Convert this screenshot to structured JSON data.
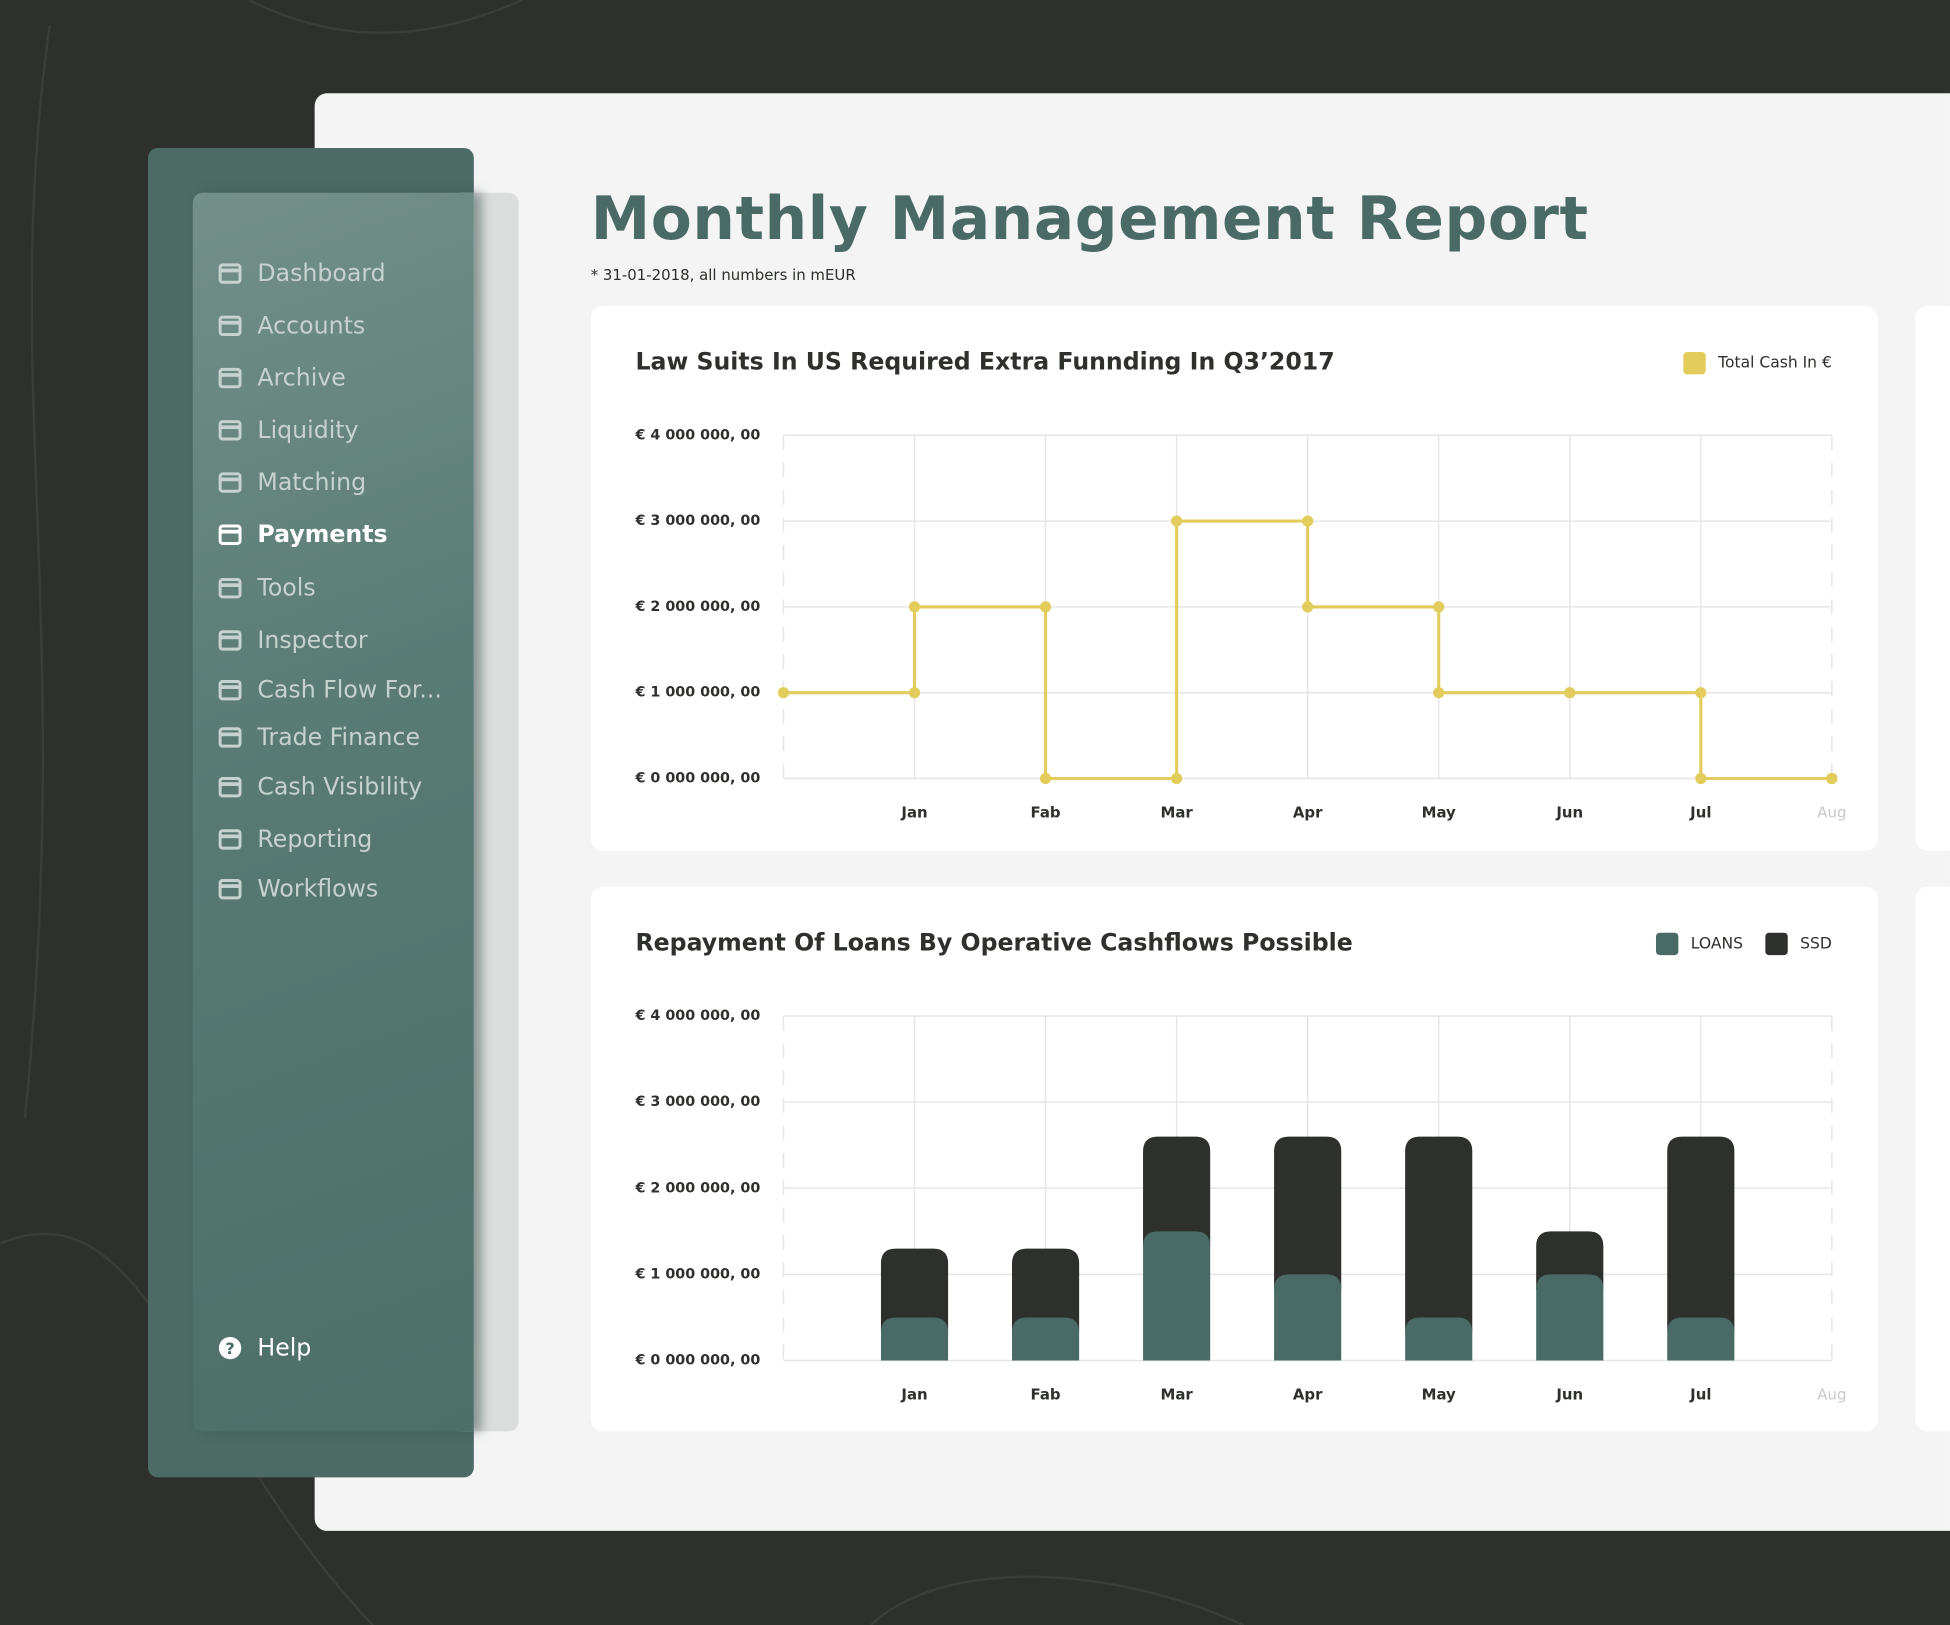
{
  "header": {
    "title": "Monthly Management Report",
    "subtitle": "* 31-01-2018, all numbers in mEUR"
  },
  "sidebar": {
    "items": [
      "Dashboard",
      "Accounts",
      "Archive",
      "Liquidity",
      "Matching",
      "Payments",
      "Tools",
      "Inspector",
      "Cash Flow For...",
      "Trade Finance",
      "Cash Visibility",
      "Reporting",
      "Workflows"
    ],
    "help": "Help"
  },
  "chart_data": [
    {
      "type": "line",
      "step": "post",
      "title": "Law Suits In US Required Extra Funnding In Q3’2017",
      "categories": [
        null,
        "Jan",
        "Fab",
        "Mar",
        "Apr",
        "May",
        "Jun",
        "Jul",
        "Aug"
      ],
      "series": [
        {
          "name": "Total Cash In €",
          "color": "#e2cd5c",
          "values": [
            1000000,
            2000000,
            0,
            3000000,
            2000000,
            1000000,
            1000000,
            0,
            0
          ]
        }
      ],
      "ylim": [
        0,
        4000000
      ],
      "yticks": [
        {
          "value": 0,
          "label": "€ 0 000 000, 00"
        },
        {
          "value": 1000000,
          "label": "€ 1 000 000, 00"
        },
        {
          "value": 2000000,
          "label": "€ 2 000 000, 00"
        },
        {
          "value": 3000000,
          "label": "€ 3 000 000, 00"
        },
        {
          "value": 4000000,
          "label": "€ 4 000 000, 00"
        }
      ],
      "grid": true,
      "legend": "top-right"
    },
    {
      "type": "stacked-bar",
      "title": "Repayment Of Loans By Operative Cashflows Possible",
      "categories": [
        null,
        "Jan",
        "Fab",
        "Mar",
        "Apr",
        "May",
        "Jun",
        "Jul",
        "Aug"
      ],
      "series": [
        {
          "name": "LOANS",
          "color": "#4a6b65",
          "values": [
            null,
            500000,
            500000,
            1500000,
            1000000,
            500000,
            1000000,
            500000,
            null
          ]
        },
        {
          "name": "SSD",
          "color": "#2d302c",
          "values": [
            null,
            800000,
            800000,
            1100000,
            1600000,
            2100000,
            500000,
            2100000,
            null
          ]
        }
      ],
      "ylim": [
        0,
        4000000
      ],
      "yticks": [
        {
          "value": 0,
          "label": "€ 0 000 000, 00"
        },
        {
          "value": 1000000,
          "label": "€ 1 000 000, 00"
        },
        {
          "value": 2000000,
          "label": "€ 2 000 000, 00"
        },
        {
          "value": 3000000,
          "label": "€ 3 000 000, 00"
        },
        {
          "value": 4000000,
          "label": "€ 4 000 000, 00"
        }
      ],
      "grid": true,
      "legend": "top-right"
    }
  ]
}
